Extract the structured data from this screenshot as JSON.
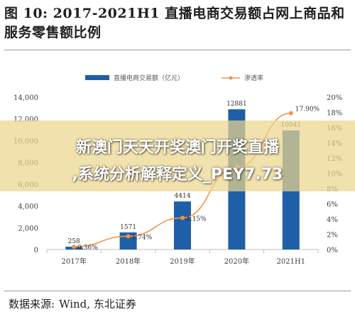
{
  "figure": {
    "title": "图 10:  2017-2021H1 直播电商交易额占网上商品和服务零售额比例",
    "source_label": "数据来源:",
    "source_value": "Wind, 东北证券"
  },
  "banner": {
    "line1": "新澳门天天开奖澳门开奖直播",
    "line2": ",系统分析解释定义_PEY7.73"
  },
  "colors": {
    "bar": "#1f5fa8",
    "line": "#f0944a",
    "axis": "#bfbfbf",
    "text": "#404040"
  },
  "chart_data": {
    "type": "bar",
    "categories": [
      "2017年",
      "2018年",
      "2019年",
      "2020年",
      "2021H1"
    ],
    "series": [
      {
        "name": "直播电商交易额（亿元）",
        "type": "bar",
        "axis": "left",
        "values": [
          258,
          1571,
          4414,
          12881,
          10941
        ],
        "value_labels": [
          "258",
          "1571",
          "4414",
          "12881",
          "10941"
        ]
      },
      {
        "name": "渗透率",
        "type": "line",
        "axis": "right",
        "values": [
          0.36,
          1.74,
          4.15,
          10.8,
          17.9
        ],
        "value_labels": [
          "0.36%",
          "1.74%",
          "4.15%",
          "",
          "17.90%"
        ]
      }
    ],
    "y_left": {
      "min": 0,
      "max": 14000,
      "ticks": [
        "0",
        "2,000",
        "4,000",
        "6,000",
        "8,000",
        "10,000",
        "12,000",
        "14,000"
      ]
    },
    "y_right": {
      "min": 0,
      "max": 20,
      "ticks": [
        "0%",
        "2%",
        "4%",
        "6%",
        "8%",
        "10%",
        "12%",
        "14%",
        "16%",
        "18%",
        "20%"
      ]
    },
    "legend_position": "top"
  }
}
